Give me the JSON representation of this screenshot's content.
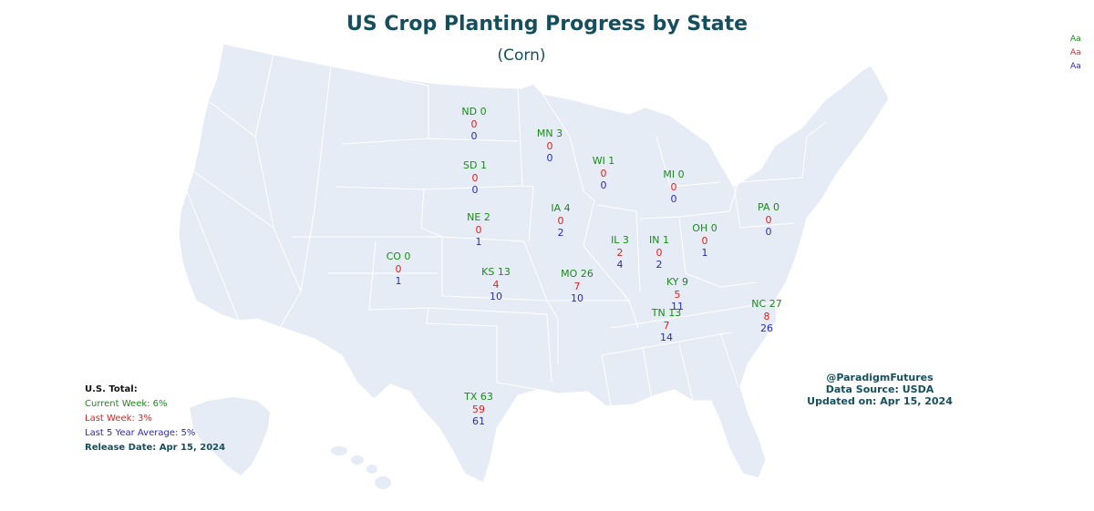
{
  "title": "US Crop Planting Progress by State",
  "subtitle": "(Corn)",
  "legend_aa": [
    "Aa",
    "Aa",
    "Aa"
  ],
  "colors": {
    "current_week": "#1a8a1a",
    "last_week": "#e0201e",
    "five_year_avg": "#2a2ab8",
    "land": "#e6ecf5",
    "borders": "#ffffff",
    "heading": "#154f5e"
  },
  "states": [
    {
      "code": "ND",
      "current": "ND 0",
      "last": "0",
      "avg": "0"
    },
    {
      "code": "MN",
      "current": "MN 3",
      "last": "0",
      "avg": "0"
    },
    {
      "code": "WI",
      "current": "WI 1",
      "last": "0",
      "avg": "0"
    },
    {
      "code": "MI",
      "current": "MI 0",
      "last": "0",
      "avg": "0"
    },
    {
      "code": "SD",
      "current": "SD 1",
      "last": "0",
      "avg": "0"
    },
    {
      "code": "IA",
      "current": "IA 4",
      "last": "0",
      "avg": "2"
    },
    {
      "code": "PA",
      "current": "PA 0",
      "last": "0",
      "avg": "0"
    },
    {
      "code": "NE",
      "current": "NE 2",
      "last": "0",
      "avg": "1"
    },
    {
      "code": "OH",
      "current": "OH 0",
      "last": "0",
      "avg": "1"
    },
    {
      "code": "IL",
      "current": "IL 3",
      "last": "2",
      "avg": "4"
    },
    {
      "code": "IN",
      "current": "IN 1",
      "last": "0",
      "avg": "2"
    },
    {
      "code": "CO",
      "current": "CO 0",
      "last": "0",
      "avg": "1"
    },
    {
      "code": "KS",
      "current": "KS 13",
      "last": "4",
      "avg": "10"
    },
    {
      "code": "MO",
      "current": "MO 26",
      "last": "7",
      "avg": "10"
    },
    {
      "code": "KY",
      "current": "KY 9",
      "last": "5",
      "avg": "11"
    },
    {
      "code": "NC",
      "current": "NC 27",
      "last": "8",
      "avg": "26"
    },
    {
      "code": "TN",
      "current": "TN 13",
      "last": "7",
      "avg": "14"
    },
    {
      "code": "TX",
      "current": "TX 63",
      "last": "59",
      "avg": "61"
    }
  ],
  "totals": {
    "header": "U.S. Total:",
    "current": "Current Week: 6%",
    "last": "Last Week: 3%",
    "avg": "Last 5 Year Average: 5%",
    "release": "Release Date: Apr 15, 2024"
  },
  "credits": {
    "handle": "@ParadigmFutures",
    "source": "Data Source: USDA",
    "updated": "Updated on: Apr 15, 2024"
  }
}
